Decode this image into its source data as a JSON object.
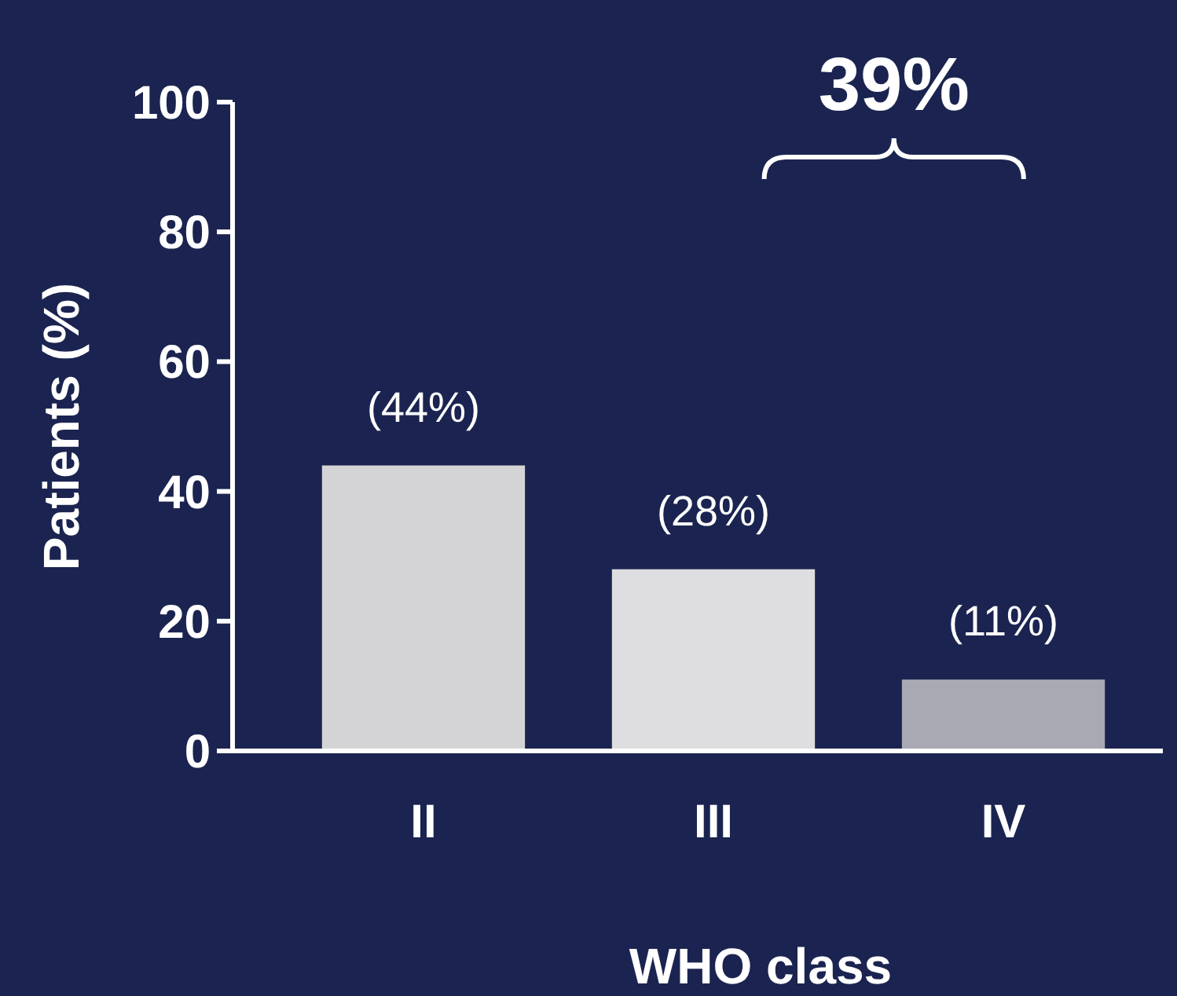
{
  "chart_data": {
    "type": "bar",
    "xlabel": "WHO class",
    "ylabel": "Patients (%)",
    "categories": [
      "II",
      "III",
      "IV"
    ],
    "values": [
      44,
      28,
      11
    ],
    "colors": [
      "#d4d4d6",
      "#dedee0",
      "#a9a9b3"
    ],
    "value_labels": [
      "(44%)",
      "(28%)",
      "(11%)"
    ],
    "ylim": [
      0,
      100
    ],
    "yticks": [
      0,
      20,
      40,
      60,
      80,
      100
    ],
    "annotations": [
      "39%"
    ],
    "grid": false
  }
}
